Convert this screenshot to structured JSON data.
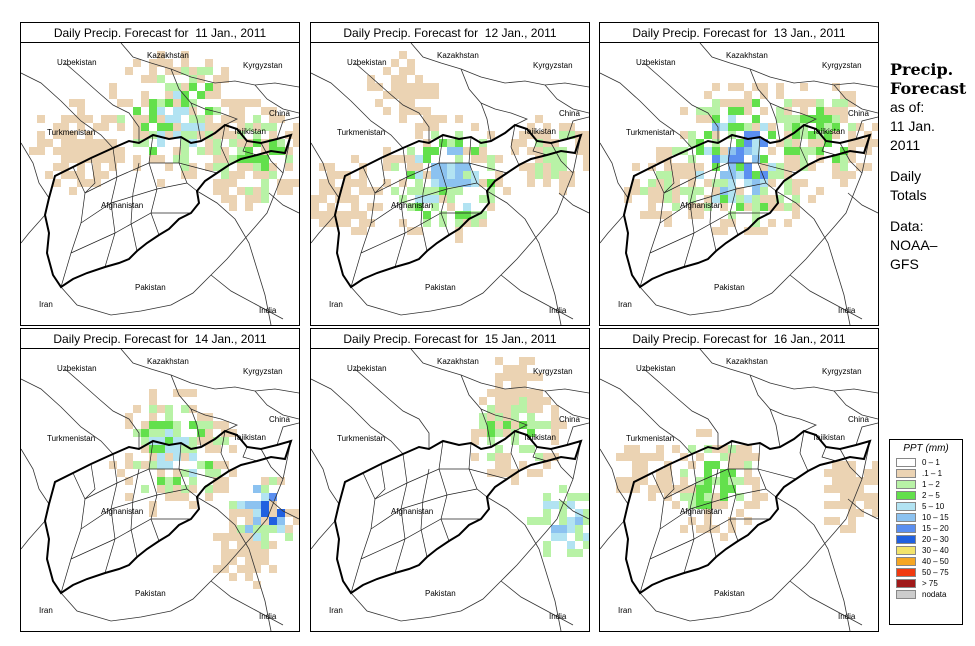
{
  "panels": [
    {
      "title": "Daily Precip. Forecast for  11 Jan., 2011"
    },
    {
      "title": "Daily Precip. Forecast for  12 Jan., 2011"
    },
    {
      "title": "Daily Precip. Forecast for  13 Jan., 2011"
    },
    {
      "title": "Daily Precip. Forecast for  14 Jan., 2011"
    },
    {
      "title": "Daily Precip. Forecast for  15 Jan., 2011"
    },
    {
      "title": "Daily Precip. Forecast for  16 Jan., 2011"
    }
  ],
  "map_labels": {
    "uzbekistan": "Uzbekistan",
    "kazakhstan": "Kazakhstan",
    "kyrgyzstan": "Kyrgyzstan",
    "china": "China",
    "turkmenistan": "Turkmenistan",
    "tajikistan": "Tajikistan",
    "afghanistan": "Afghanistan",
    "iran": "Iran",
    "pakistan": "Pakistan",
    "india": "India"
  },
  "side": {
    "title_line1": "Precip.",
    "title_line2": "Forecast",
    "asof_label": "as of:",
    "date_line1": "11 Jan.",
    "date_line2": "2011",
    "totals_line1": "Daily",
    "totals_line2": "Totals",
    "data_label": "Data:",
    "data_line1": "NOAA–",
    "data_line2": "GFS"
  },
  "legend": {
    "title": "PPT (mm)",
    "items": [
      {
        "label": "0 – 1",
        "color": "#ffffff"
      },
      {
        "label": ".1 – 1",
        "color": "#ebd3b3"
      },
      {
        "label": "1 – 2",
        "color": "#b8f2a6"
      },
      {
        "label": "2 – 5",
        "color": "#63e04c"
      },
      {
        "label": "5 – 10",
        "color": "#b2e3f2"
      },
      {
        "label": "10 – 15",
        "color": "#8cc2f0"
      },
      {
        "label": "15 – 20",
        "color": "#5b8ff0"
      },
      {
        "label": "20 – 30",
        "color": "#2060e0"
      },
      {
        "label": "30 – 40",
        "color": "#f2e36a"
      },
      {
        "label": "40 – 50",
        "color": "#f5a623"
      },
      {
        "label": "50 – 75",
        "color": "#f03a10"
      },
      {
        "label": "> 75",
        "color": "#a01a1a"
      },
      {
        "label": "nodata",
        "color": "#cccccc"
      }
    ]
  }
}
